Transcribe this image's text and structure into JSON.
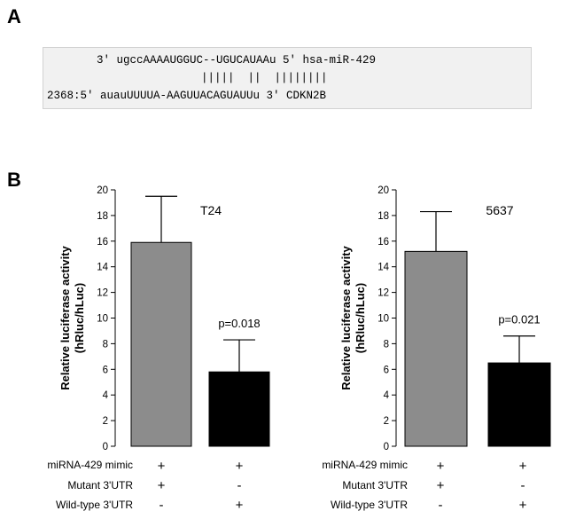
{
  "panels": {
    "a_label": "A",
    "b_label": "B"
  },
  "sequence": {
    "mirna_line": "3' ugccAAAAUGGUC--UGUCAUAAu 5' hsa-miR-429",
    "pair_line": "|||||  ||  ||||||||",
    "target_line": "2368:5' auauUUUUA-AAGUUACAGUAUUu 3' CDKN2B"
  },
  "chart_data": [
    {
      "type": "bar",
      "title": "T24",
      "ylabel": "Relative luciferase activity\n(hRluc/hLuc)",
      "ylim": [
        0,
        20
      ],
      "yticks": [
        0,
        2,
        4,
        6,
        8,
        10,
        12,
        14,
        16,
        18,
        20
      ],
      "categories": [
        "Mutant",
        "Wild-type"
      ],
      "values": [
        15.9,
        5.8
      ],
      "errors": [
        3.6,
        2.5
      ],
      "bar_colors": [
        "#8c8c8c",
        "#000000"
      ],
      "annotation": "p=0.018"
    },
    {
      "type": "bar",
      "title": "5637",
      "ylabel": "Relative luciferase activity\n(hRluc/hLuc)",
      "ylim": [
        0,
        20
      ],
      "yticks": [
        0,
        2,
        4,
        6,
        8,
        10,
        12,
        14,
        16,
        18,
        20
      ],
      "categories": [
        "Mutant",
        "Wild-type"
      ],
      "values": [
        15.2,
        6.5
      ],
      "errors": [
        3.1,
        2.1
      ],
      "bar_colors": [
        "#8c8c8c",
        "#000000"
      ],
      "annotation": "p=0.021"
    }
  ],
  "conditions": {
    "labels": [
      "miRNA-429 mimic",
      "Mutant 3'UTR",
      "Wild-type 3'UTR"
    ],
    "signs": [
      [
        "+",
        "+"
      ],
      [
        "+",
        "-"
      ],
      [
        "-",
        "+"
      ]
    ]
  }
}
